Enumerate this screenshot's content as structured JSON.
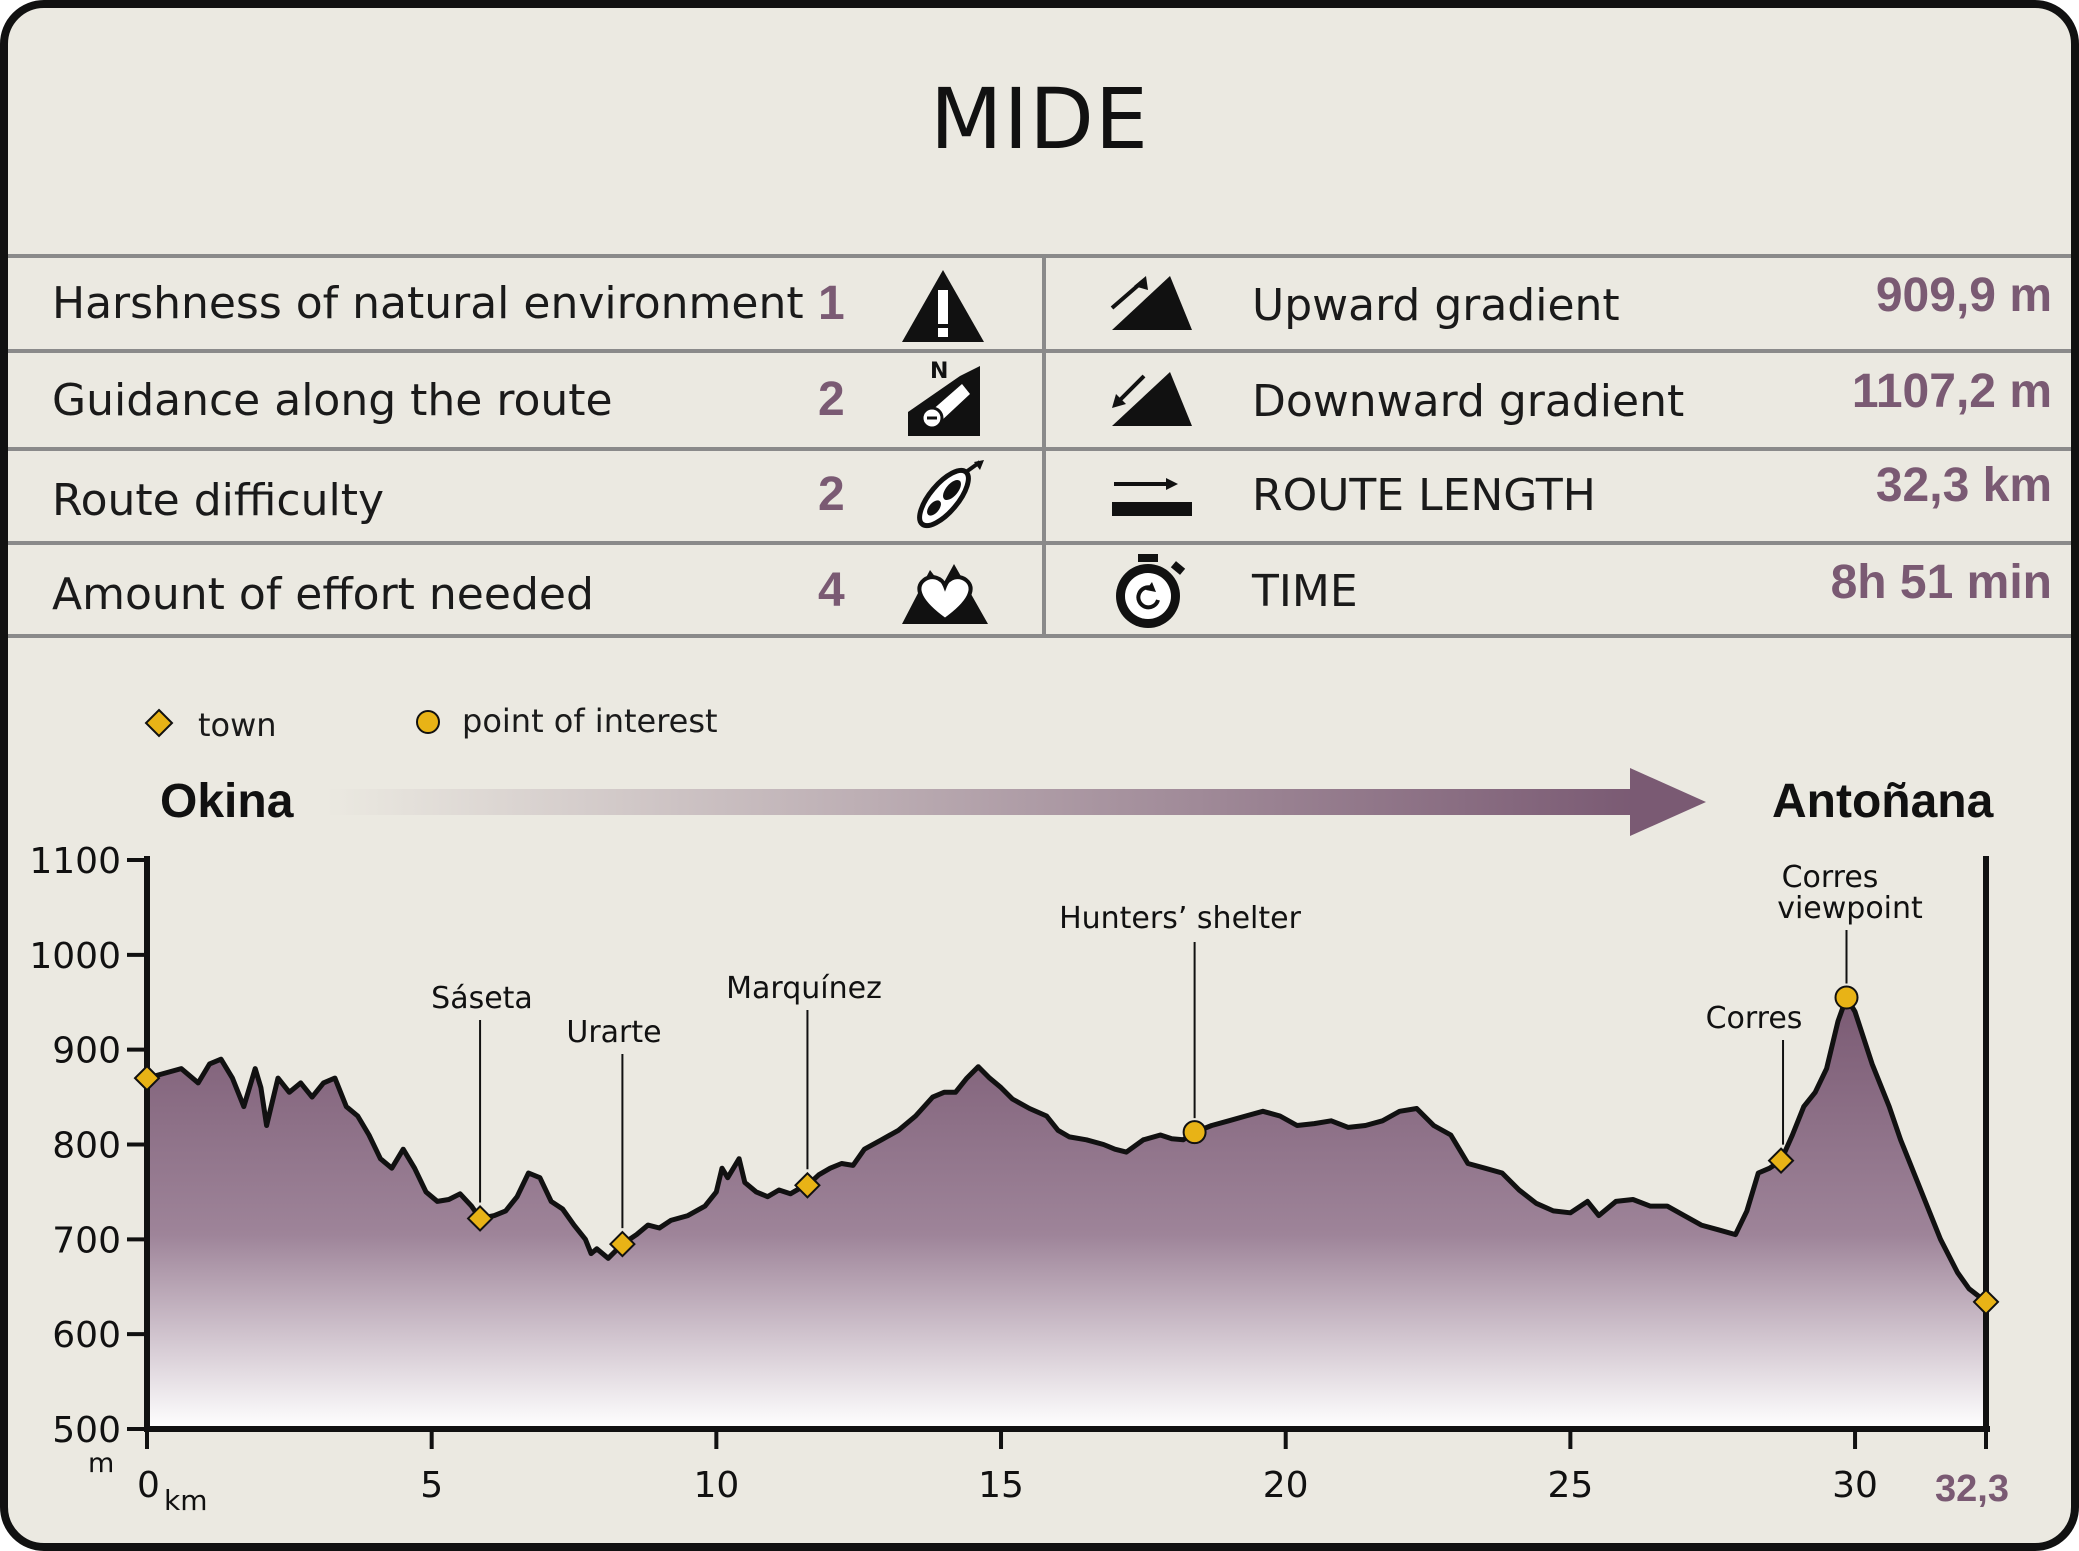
{
  "title": "MIDE",
  "mide": [
    {
      "label": "Harshness of natural environment",
      "value": "1",
      "icon": "warning-triangle-icon"
    },
    {
      "label": "Guidance along the route",
      "value": "2",
      "icon": "signpost-compass-icon"
    },
    {
      "label": "Route difficulty",
      "value": "2",
      "icon": "footprint-icon"
    },
    {
      "label": "Amount of effort needed",
      "value": "4",
      "icon": "heart-mountain-icon"
    }
  ],
  "route": [
    {
      "label": "Upward gradient",
      "value": "909,9 m",
      "icon": "upward-slope-icon"
    },
    {
      "label": "Downward gradient",
      "value": "1107,2 m",
      "icon": "downward-slope-icon"
    },
    {
      "label": "ROUTE LENGTH",
      "value": "32,3 km",
      "icon": "distance-arrow-icon"
    },
    {
      "label": "TIME",
      "value": "8h 51 min",
      "icon": "stopwatch-icon"
    }
  ],
  "legend": {
    "town": "town",
    "poi": "point of interest"
  },
  "start": "Okina",
  "end": "Antoñana",
  "colors": {
    "fill_top": "#7a5a73",
    "value": "#7a5a73",
    "marker": "#e8b316",
    "bg": "#ebe9e1",
    "line": "#8a8a8a"
  },
  "chart_data": {
    "type": "area",
    "ylim": [
      500,
      1100
    ],
    "xlim": [
      0,
      32.3
    ],
    "y_ticks": [
      "500",
      "600",
      "700",
      "800",
      "900",
      "1000",
      "1100"
    ],
    "y_unit": "m",
    "x_ticks": [
      "0",
      "5",
      "10",
      "15",
      "20",
      "25",
      "30"
    ],
    "x_unit": "km",
    "x_end_label": "32,3",
    "profile": [
      [
        0,
        870
      ],
      [
        0.3,
        875
      ],
      [
        0.6,
        880
      ],
      [
        0.9,
        865
      ],
      [
        1.1,
        885
      ],
      [
        1.3,
        890
      ],
      [
        1.5,
        870
      ],
      [
        1.7,
        840
      ],
      [
        1.9,
        880
      ],
      [
        2.0,
        860
      ],
      [
        2.1,
        820
      ],
      [
        2.3,
        870
      ],
      [
        2.5,
        855
      ],
      [
        2.7,
        865
      ],
      [
        2.9,
        850
      ],
      [
        3.1,
        865
      ],
      [
        3.3,
        870
      ],
      [
        3.5,
        840
      ],
      [
        3.7,
        830
      ],
      [
        3.9,
        810
      ],
      [
        4.1,
        785
      ],
      [
        4.3,
        775
      ],
      [
        4.5,
        795
      ],
      [
        4.7,
        775
      ],
      [
        4.9,
        750
      ],
      [
        5.1,
        740
      ],
      [
        5.3,
        742
      ],
      [
        5.5,
        748
      ],
      [
        5.7,
        735
      ],
      [
        5.85,
        722
      ],
      [
        6.1,
        725
      ],
      [
        6.3,
        730
      ],
      [
        6.5,
        745
      ],
      [
        6.7,
        770
      ],
      [
        6.9,
        765
      ],
      [
        7.1,
        740
      ],
      [
        7.3,
        732
      ],
      [
        7.5,
        715
      ],
      [
        7.7,
        700
      ],
      [
        7.8,
        685
      ],
      [
        7.9,
        690
      ],
      [
        8.1,
        680
      ],
      [
        8.35,
        695
      ],
      [
        8.6,
        705
      ],
      [
        8.8,
        715
      ],
      [
        9.0,
        712
      ],
      [
        9.2,
        720
      ],
      [
        9.5,
        725
      ],
      [
        9.8,
        735
      ],
      [
        10.0,
        750
      ],
      [
        10.1,
        775
      ],
      [
        10.2,
        765
      ],
      [
        10.4,
        785
      ],
      [
        10.5,
        760
      ],
      [
        10.7,
        750
      ],
      [
        10.9,
        745
      ],
      [
        11.1,
        752
      ],
      [
        11.3,
        748
      ],
      [
        11.5,
        755
      ],
      [
        11.6,
        757
      ],
      [
        11.8,
        768
      ],
      [
        12.0,
        775
      ],
      [
        12.2,
        780
      ],
      [
        12.4,
        778
      ],
      [
        12.6,
        795
      ],
      [
        12.9,
        805
      ],
      [
        13.2,
        815
      ],
      [
        13.5,
        830
      ],
      [
        13.8,
        850
      ],
      [
        14.0,
        855
      ],
      [
        14.2,
        855
      ],
      [
        14.4,
        870
      ],
      [
        14.6,
        882
      ],
      [
        14.8,
        870
      ],
      [
        15.0,
        860
      ],
      [
        15.2,
        848
      ],
      [
        15.5,
        838
      ],
      [
        15.8,
        830
      ],
      [
        16.0,
        815
      ],
      [
        16.2,
        808
      ],
      [
        16.5,
        805
      ],
      [
        16.8,
        800
      ],
      [
        17.0,
        795
      ],
      [
        17.2,
        792
      ],
      [
        17.5,
        805
      ],
      [
        17.8,
        810
      ],
      [
        18.0,
        806
      ],
      [
        18.2,
        805
      ],
      [
        18.4,
        813
      ],
      [
        18.7,
        820
      ],
      [
        19.0,
        825
      ],
      [
        19.3,
        830
      ],
      [
        19.6,
        835
      ],
      [
        19.9,
        830
      ],
      [
        20.2,
        820
      ],
      [
        20.5,
        822
      ],
      [
        20.8,
        825
      ],
      [
        21.1,
        818
      ],
      [
        21.4,
        820
      ],
      [
        21.7,
        825
      ],
      [
        22.0,
        835
      ],
      [
        22.3,
        838
      ],
      [
        22.6,
        820
      ],
      [
        22.9,
        810
      ],
      [
        23.2,
        780
      ],
      [
        23.5,
        775
      ],
      [
        23.8,
        770
      ],
      [
        24.1,
        752
      ],
      [
        24.4,
        738
      ],
      [
        24.7,
        730
      ],
      [
        25.0,
        728
      ],
      [
        25.3,
        740
      ],
      [
        25.5,
        725
      ],
      [
        25.8,
        740
      ],
      [
        26.1,
        742
      ],
      [
        26.4,
        735
      ],
      [
        26.7,
        735
      ],
      [
        27.0,
        725
      ],
      [
        27.3,
        715
      ],
      [
        27.6,
        710
      ],
      [
        27.9,
        705
      ],
      [
        28.1,
        730
      ],
      [
        28.3,
        770
      ],
      [
        28.5,
        775
      ],
      [
        28.7,
        783
      ],
      [
        28.9,
        810
      ],
      [
        29.1,
        840
      ],
      [
        29.3,
        855
      ],
      [
        29.5,
        880
      ],
      [
        29.7,
        930
      ],
      [
        29.85,
        955
      ],
      [
        30.0,
        940
      ],
      [
        30.3,
        885
      ],
      [
        30.6,
        840
      ],
      [
        30.8,
        805
      ],
      [
        31.1,
        760
      ],
      [
        31.3,
        730
      ],
      [
        31.5,
        700
      ],
      [
        31.8,
        665
      ],
      [
        32.0,
        648
      ],
      [
        32.3,
        634
      ]
    ],
    "towns": [
      {
        "name": "",
        "x": 0,
        "y": 870
      },
      {
        "name": "Sáseta",
        "x": 5.85,
        "y": 722
      },
      {
        "name": "Urarte",
        "x": 8.35,
        "y": 695
      },
      {
        "name": "Marquínez",
        "x": 11.6,
        "y": 757
      },
      {
        "name": "Corres",
        "x": 28.7,
        "y": 783
      },
      {
        "name": "",
        "x": 32.3,
        "y": 634
      }
    ],
    "points_of_interest": [
      {
        "name": "Hunters’ shelter",
        "x": 18.4,
        "y": 813
      },
      {
        "name": "Corres viewpoint",
        "x": 29.85,
        "y": 955
      }
    ]
  }
}
